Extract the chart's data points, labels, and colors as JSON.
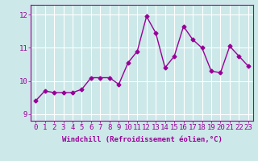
{
  "x": [
    0,
    1,
    2,
    3,
    4,
    5,
    6,
    7,
    8,
    9,
    10,
    11,
    12,
    13,
    14,
    15,
    16,
    17,
    18,
    19,
    20,
    21,
    22,
    23
  ],
  "y": [
    9.4,
    9.7,
    9.65,
    9.65,
    9.65,
    9.75,
    10.1,
    10.1,
    10.1,
    9.9,
    10.55,
    10.9,
    11.95,
    11.45,
    10.4,
    10.75,
    11.65,
    11.25,
    11.0,
    10.3,
    10.25,
    11.05,
    10.75,
    10.45
  ],
  "line_color": "#990099",
  "marker": "D",
  "marker_size": 2.5,
  "bg_color": "#cce8e8",
  "grid_color": "#ffffff",
  "ylabel_ticks": [
    9,
    10,
    11,
    12
  ],
  "ylim": [
    8.8,
    12.3
  ],
  "xlim": [
    -0.5,
    23.5
  ],
  "xlabel": "Windchill (Refroidissement éolien,°C)",
  "xlabel_fontsize": 6.5,
  "tick_fontsize": 6.5,
  "line_width": 1.0
}
